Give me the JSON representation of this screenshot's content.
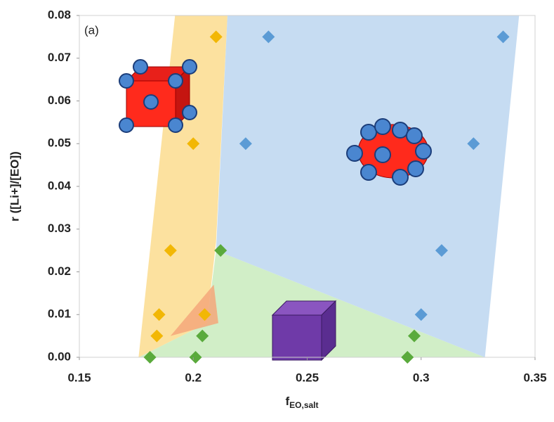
{
  "chart_data": {
    "type": "scatter",
    "annotation": "(a)",
    "x_label": "f",
    "x_label_subscript": "EO,salt",
    "y_label": "r ([Li+]/[EO])",
    "xlim": [
      0.15,
      0.35
    ],
    "xticks": [
      0.15,
      0.2,
      0.25,
      0.3,
      0.35
    ],
    "ylim": [
      0,
      0.08
    ],
    "yticks": [
      {
        "value": 0,
        "label": "0.00"
      },
      {
        "value": 0.01,
        "label": "0.01"
      },
      {
        "value": 0.02,
        "label": "0.02"
      },
      {
        "value": 0.03,
        "label": "0.03"
      },
      {
        "value": 0.04,
        "label": "0.04"
      },
      {
        "value": 0.05,
        "label": "0.05"
      },
      {
        "value": 0.06,
        "label": "0.06"
      },
      {
        "value": 0.07,
        "label": "0.07"
      },
      {
        "value": 0.08,
        "label": "0.08"
      }
    ],
    "regions": [
      {
        "color": "#c9ebbd",
        "x": [
          0.21,
          0.328,
          0.176,
          0.206
        ],
        "y": [
          0.025,
          0,
          0,
          0.008
        ]
      },
      {
        "color": "#bcd6f0",
        "x": [
          0.215,
          0.343,
          0.328,
          0.21
        ],
        "y": [
          0.08,
          0.08,
          0,
          0.025
        ]
      },
      {
        "color": "#fbdc8e",
        "x": [
          0.192,
          0.215,
          0.21,
          0.206,
          0.176
        ],
        "y": [
          0.08,
          0.08,
          0.027,
          0.008,
          0
        ]
      },
      {
        "color": "#f4a77a",
        "x": [
          0.209,
          0.211,
          0.19
        ],
        "y": [
          0.017,
          0.008,
          0.005
        ]
      }
    ],
    "series": [
      {
        "color": "#f2b705",
        "x": [
          0.21,
          0.2,
          0.19,
          0.185,
          0.205,
          0.184
        ],
        "values": [
          0.075,
          0.05,
          0.025,
          0.01,
          0.01,
          0.005
        ]
      },
      {
        "color": "#5b9bd5",
        "x": [
          0.233,
          0.336,
          0.223,
          0.323,
          0.309,
          0.3
        ],
        "values": [
          0.075,
          0.075,
          0.05,
          0.05,
          0.025,
          0.01
        ]
      },
      {
        "color": "#5aaa3c",
        "x": [
          0.212,
          0.204,
          0.297,
          0.181,
          0.201,
          0.294
        ],
        "values": [
          0.025,
          0.005,
          0.005,
          0,
          0,
          0
        ]
      }
    ]
  }
}
